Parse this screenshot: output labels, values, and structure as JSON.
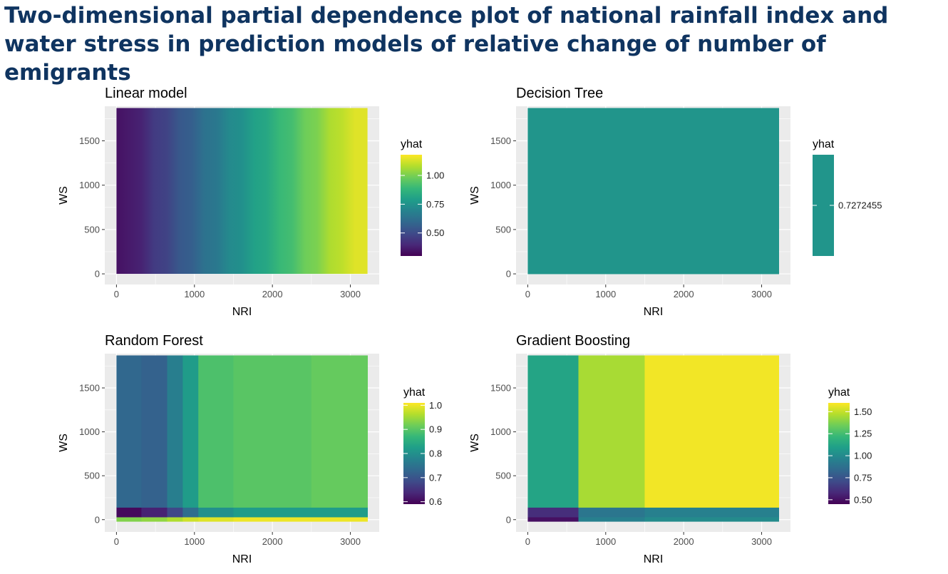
{
  "title": "Two-dimensional partial dependence plot of national rainfall index and water stress in prediction models of relative change of number of emigrants",
  "colors": {
    "panel_bg": "#ebebeb",
    "grid": "#ffffff",
    "tick_text": "#4d4d4d",
    "title_text": "#0f3460",
    "viridis": [
      "#440154",
      "#482878",
      "#3e4a89",
      "#31688e",
      "#26828e",
      "#1f9e89",
      "#35b779",
      "#6dcd59",
      "#b4de2c",
      "#fde725"
    ]
  },
  "chart_data": [
    {
      "type": "heatmap",
      "title": "Linear model",
      "xlabel": "NRI",
      "ylabel": "WS",
      "xlim": [
        0,
        3220
      ],
      "ylim": [
        0,
        1870
      ],
      "xticks": [
        0,
        1000,
        2000,
        3000
      ],
      "yticks": [
        0,
        500,
        1000,
        1500
      ],
      "legend": {
        "title": "yhat",
        "min": 0.3,
        "max": 1.18,
        "ticks": [
          0.5,
          0.75,
          1.0
        ],
        "tick_labels": [
          "0.50",
          "0.75",
          "1.00"
        ]
      },
      "x_bins": [
        0,
        322,
        644,
        966,
        1288,
        1610,
        1932,
        2254,
        2576,
        2898,
        3220
      ],
      "y_bins": [
        0,
        1870
      ],
      "values": [
        [
          0.34,
          0.43,
          0.52,
          0.61,
          0.7,
          0.78,
          0.87,
          0.96,
          1.05,
          1.14
        ]
      ]
    },
    {
      "type": "heatmap",
      "title": "Decision Tree",
      "xlabel": "NRI",
      "ylabel": "WS",
      "xlim": [
        0,
        3220
      ],
      "ylim": [
        0,
        1870
      ],
      "xticks": [
        0,
        1000,
        2000,
        3000
      ],
      "yticks": [
        0,
        500,
        1000,
        1500
      ],
      "legend": {
        "title": "yhat",
        "min": 0.7272455,
        "max": 0.7272455,
        "ticks": [
          0.7272455
        ],
        "tick_labels": [
          "0.7272455"
        ]
      },
      "x_bins": [
        0,
        3220
      ],
      "y_bins": [
        0,
        1870
      ],
      "values": [
        [
          0.7272455
        ]
      ]
    },
    {
      "type": "heatmap",
      "title": "Random Forest",
      "xlabel": "NRI",
      "ylabel": "WS",
      "xlim": [
        0,
        3220
      ],
      "ylim": [
        -20,
        1870
      ],
      "xticks": [
        0,
        1000,
        2000,
        3000
      ],
      "yticks": [
        0,
        500,
        1000,
        1500
      ],
      "legend": {
        "title": "yhat",
        "min": 0.59,
        "max": 1.01,
        "ticks": [
          0.6,
          0.7,
          0.8,
          0.9,
          1.0
        ],
        "tick_labels": [
          "0.6",
          "0.7",
          "0.8",
          "0.9",
          "1.0"
        ]
      },
      "x_bins": [
        0,
        320,
        650,
        850,
        1050,
        1500,
        2500,
        3220
      ],
      "y_bins": [
        -20,
        30,
        140,
        1870
      ],
      "values": [
        [
          0.93,
          0.94,
          0.96,
          0.98,
          0.99,
          1.0,
          1.0
        ],
        [
          0.6,
          0.63,
          0.68,
          0.74,
          0.8,
          0.82,
          0.82
        ],
        [
          0.73,
          0.72,
          0.77,
          0.82,
          0.89,
          0.9,
          0.91
        ]
      ]
    },
    {
      "type": "heatmap",
      "title": "Gradient Boosting",
      "xlabel": "NRI",
      "ylabel": "WS",
      "xlim": [
        0,
        3220
      ],
      "ylim": [
        -20,
        1870
      ],
      "xticks": [
        0,
        1000,
        2000,
        3000
      ],
      "yticks": [
        0,
        500,
        1000,
        1500
      ],
      "legend": {
        "title": "yhat",
        "min": 0.45,
        "max": 1.6,
        "ticks": [
          0.5,
          0.75,
          1.0,
          1.25,
          1.5
        ],
        "tick_labels": [
          "0.50",
          "0.75",
          "1.00",
          "1.25",
          "1.50"
        ]
      },
      "x_bins": [
        0,
        650,
        1500,
        3220
      ],
      "y_bins": [
        -20,
        30,
        140,
        1870
      ],
      "values": [
        [
          0.5,
          0.95,
          1.0
        ],
        [
          0.6,
          0.9,
          0.95
        ],
        [
          1.12,
          1.45,
          1.58
        ]
      ]
    }
  ]
}
